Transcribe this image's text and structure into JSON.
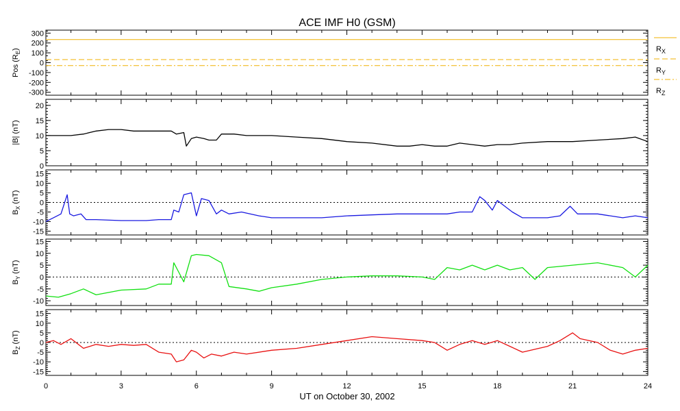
{
  "title": "ACE IMF H0 (GSM)",
  "x_axis_label": "UT on October 30, 2002",
  "chart_data": [
    {
      "type": "line",
      "panel": "position",
      "ylabel": {
        "main": "Pos (R",
        "sub": "E",
        "tail": ")"
      },
      "ylim": [
        -330,
        330
      ],
      "yticks": [
        300,
        200,
        100,
        0,
        -100,
        -200,
        -300
      ],
      "xlim": [
        0,
        24
      ],
      "series": [
        {
          "name": "RX",
          "main": "R",
          "sub": "X",
          "style": "solid",
          "color": "#f0b000",
          "x": [
            0,
            24
          ],
          "y": [
            235,
            235
          ]
        },
        {
          "name": "RY",
          "main": "R",
          "sub": "Y",
          "style": "dashed",
          "color": "#f0b000",
          "x": [
            0,
            24
          ],
          "y": [
            31,
            31
          ]
        },
        {
          "name": "RZ",
          "main": "R",
          "sub": "Z",
          "style": "dashdot",
          "color": "#f0b000",
          "x": [
            0,
            24
          ],
          "y": [
            -30,
            -30
          ]
        }
      ]
    },
    {
      "type": "line",
      "panel": "B_total",
      "ylabel": {
        "main": "|B| (nT)",
        "sub": "",
        "tail": ""
      },
      "ylim": [
        0,
        22
      ],
      "yticks": [
        20,
        15,
        10,
        5,
        0
      ],
      "xlim": [
        0,
        24
      ],
      "zero_line": false,
      "series": [
        {
          "color": "#000000",
          "x": [
            0,
            0.5,
            1,
            1.5,
            2,
            2.5,
            3,
            3.5,
            4,
            4.5,
            5,
            5.2,
            5.5,
            5.6,
            5.8,
            6,
            6.3,
            6.5,
            6.8,
            7,
            7.5,
            8,
            9,
            10,
            11,
            12,
            13,
            14,
            14.5,
            15,
            15.5,
            16,
            16.5,
            17,
            17.5,
            18,
            18.5,
            19,
            20,
            21,
            22,
            23,
            23.5,
            24
          ],
          "y": [
            10,
            10,
            10,
            10.5,
            11.5,
            12,
            12,
            11.5,
            11.5,
            11.5,
            11.5,
            10.5,
            11,
            6.5,
            9,
            9.5,
            9,
            8.5,
            8.5,
            10.5,
            10.5,
            10,
            10,
            9.5,
            9,
            8,
            7.5,
            6.5,
            6.5,
            7,
            6.5,
            6.5,
            7.5,
            7,
            6.5,
            7,
            7,
            7.5,
            8,
            8,
            8.5,
            9,
            9.5,
            8
          ]
        }
      ]
    },
    {
      "type": "line",
      "panel": "Bx",
      "ylabel": {
        "main": "B",
        "sub": "X",
        "tail": " (nT)"
      },
      "ylim": [
        -17,
        17
      ],
      "yticks": [
        15,
        10,
        5,
        0,
        -5,
        -10,
        -15
      ],
      "xlim": [
        0,
        24
      ],
      "zero_line": true,
      "series": [
        {
          "color": "#1818e0",
          "x": [
            0,
            0.3,
            0.6,
            0.85,
            0.95,
            1.1,
            1.4,
            1.6,
            2,
            3,
            4,
            4.5,
            5,
            5.1,
            5.3,
            5.5,
            5.8,
            6,
            6.2,
            6.5,
            6.8,
            7,
            7.3,
            7.8,
            8.5,
            9,
            10,
            11,
            12,
            13,
            14,
            15,
            15.5,
            16,
            16.5,
            17,
            17.3,
            17.5,
            17.8,
            18,
            18.3,
            18.6,
            19,
            20,
            20.5,
            20.9,
            21.2,
            22,
            23,
            23.5,
            24
          ],
          "y": [
            -10,
            -8,
            -6,
            4,
            -6,
            -7,
            -6,
            -9,
            -9,
            -9.5,
            -9.5,
            -9,
            -9,
            -4,
            -5,
            4,
            5,
            -7,
            2,
            1,
            -6,
            -4,
            -6,
            -5,
            -7,
            -8,
            -8,
            -8,
            -7,
            -6.5,
            -6,
            -6,
            -6,
            -6,
            -5,
            -5,
            3,
            1,
            -4,
            1,
            -2,
            -5,
            -8,
            -8,
            -7,
            -2,
            -6,
            -6,
            -8,
            -7,
            -8
          ]
        }
      ]
    },
    {
      "type": "line",
      "panel": "By",
      "ylabel": {
        "main": "B",
        "sub": "Y",
        "tail": " (nT)"
      },
      "ylim": [
        -12,
        16
      ],
      "yticks": [
        15,
        10,
        5,
        0,
        -5,
        -10
      ],
      "xlim": [
        0,
        24
      ],
      "zero_line": true,
      "series": [
        {
          "color": "#10e010",
          "x": [
            0,
            0.5,
            1,
            1.5,
            2,
            3,
            4,
            4.5,
            5,
            5.1,
            5.3,
            5.5,
            5.8,
            6,
            6.5,
            7,
            7.3,
            8,
            8.5,
            9,
            10,
            11,
            12,
            13,
            14,
            15,
            15.5,
            16,
            16.5,
            17,
            17.5,
            18,
            18.5,
            19,
            19.5,
            20,
            21,
            22,
            23,
            23.5,
            24
          ],
          "y": [
            -8,
            -8.5,
            -7,
            -5,
            -7.5,
            -5.5,
            -5,
            -3,
            -3,
            6,
            2,
            -2,
            9,
            9.5,
            9,
            6,
            -4,
            -5,
            -6,
            -4.5,
            -3,
            -1,
            0,
            0.5,
            0.5,
            0,
            -1,
            4,
            3,
            5,
            3,
            5,
            3,
            4,
            -1,
            4,
            5,
            6,
            4,
            0,
            5
          ]
        }
      ]
    },
    {
      "type": "line",
      "panel": "Bz",
      "ylabel": {
        "main": "B",
        "sub": "Z",
        "tail": " (nT)"
      },
      "ylim": [
        -17,
        17
      ],
      "yticks": [
        15,
        10,
        5,
        0,
        -5,
        -10,
        -15
      ],
      "xlim": [
        0,
        24
      ],
      "zero_line": true,
      "series": [
        {
          "color": "#e81010",
          "x": [
            0,
            0.3,
            0.6,
            1,
            1.5,
            2,
            2.5,
            3,
            3.5,
            4,
            4.5,
            5,
            5.2,
            5.5,
            5.8,
            6,
            6.3,
            6.6,
            7,
            7.5,
            8,
            9,
            10,
            11,
            12,
            13,
            14,
            15,
            15.5,
            16,
            16.5,
            17,
            17.5,
            18,
            18.5,
            19,
            20,
            20.5,
            21,
            21.3,
            22,
            22.5,
            23,
            23.5,
            24
          ],
          "y": [
            0,
            1,
            -1,
            2,
            -3,
            -1,
            -2,
            -1,
            -1.5,
            -1,
            -5,
            -6,
            -10,
            -9,
            -4,
            -5,
            -8,
            -6,
            -7,
            -5,
            -6,
            -4,
            -3,
            -1,
            1,
            3,
            2,
            1,
            0,
            -4,
            -1,
            1,
            -1,
            1,
            -2,
            -5,
            -2,
            1,
            5,
            2,
            0,
            -4,
            -6,
            -4,
            -3
          ]
        }
      ]
    }
  ],
  "x_ticks": [
    "0",
    "3",
    "6",
    "9",
    "12",
    "15",
    "18",
    "21",
    "24"
  ]
}
